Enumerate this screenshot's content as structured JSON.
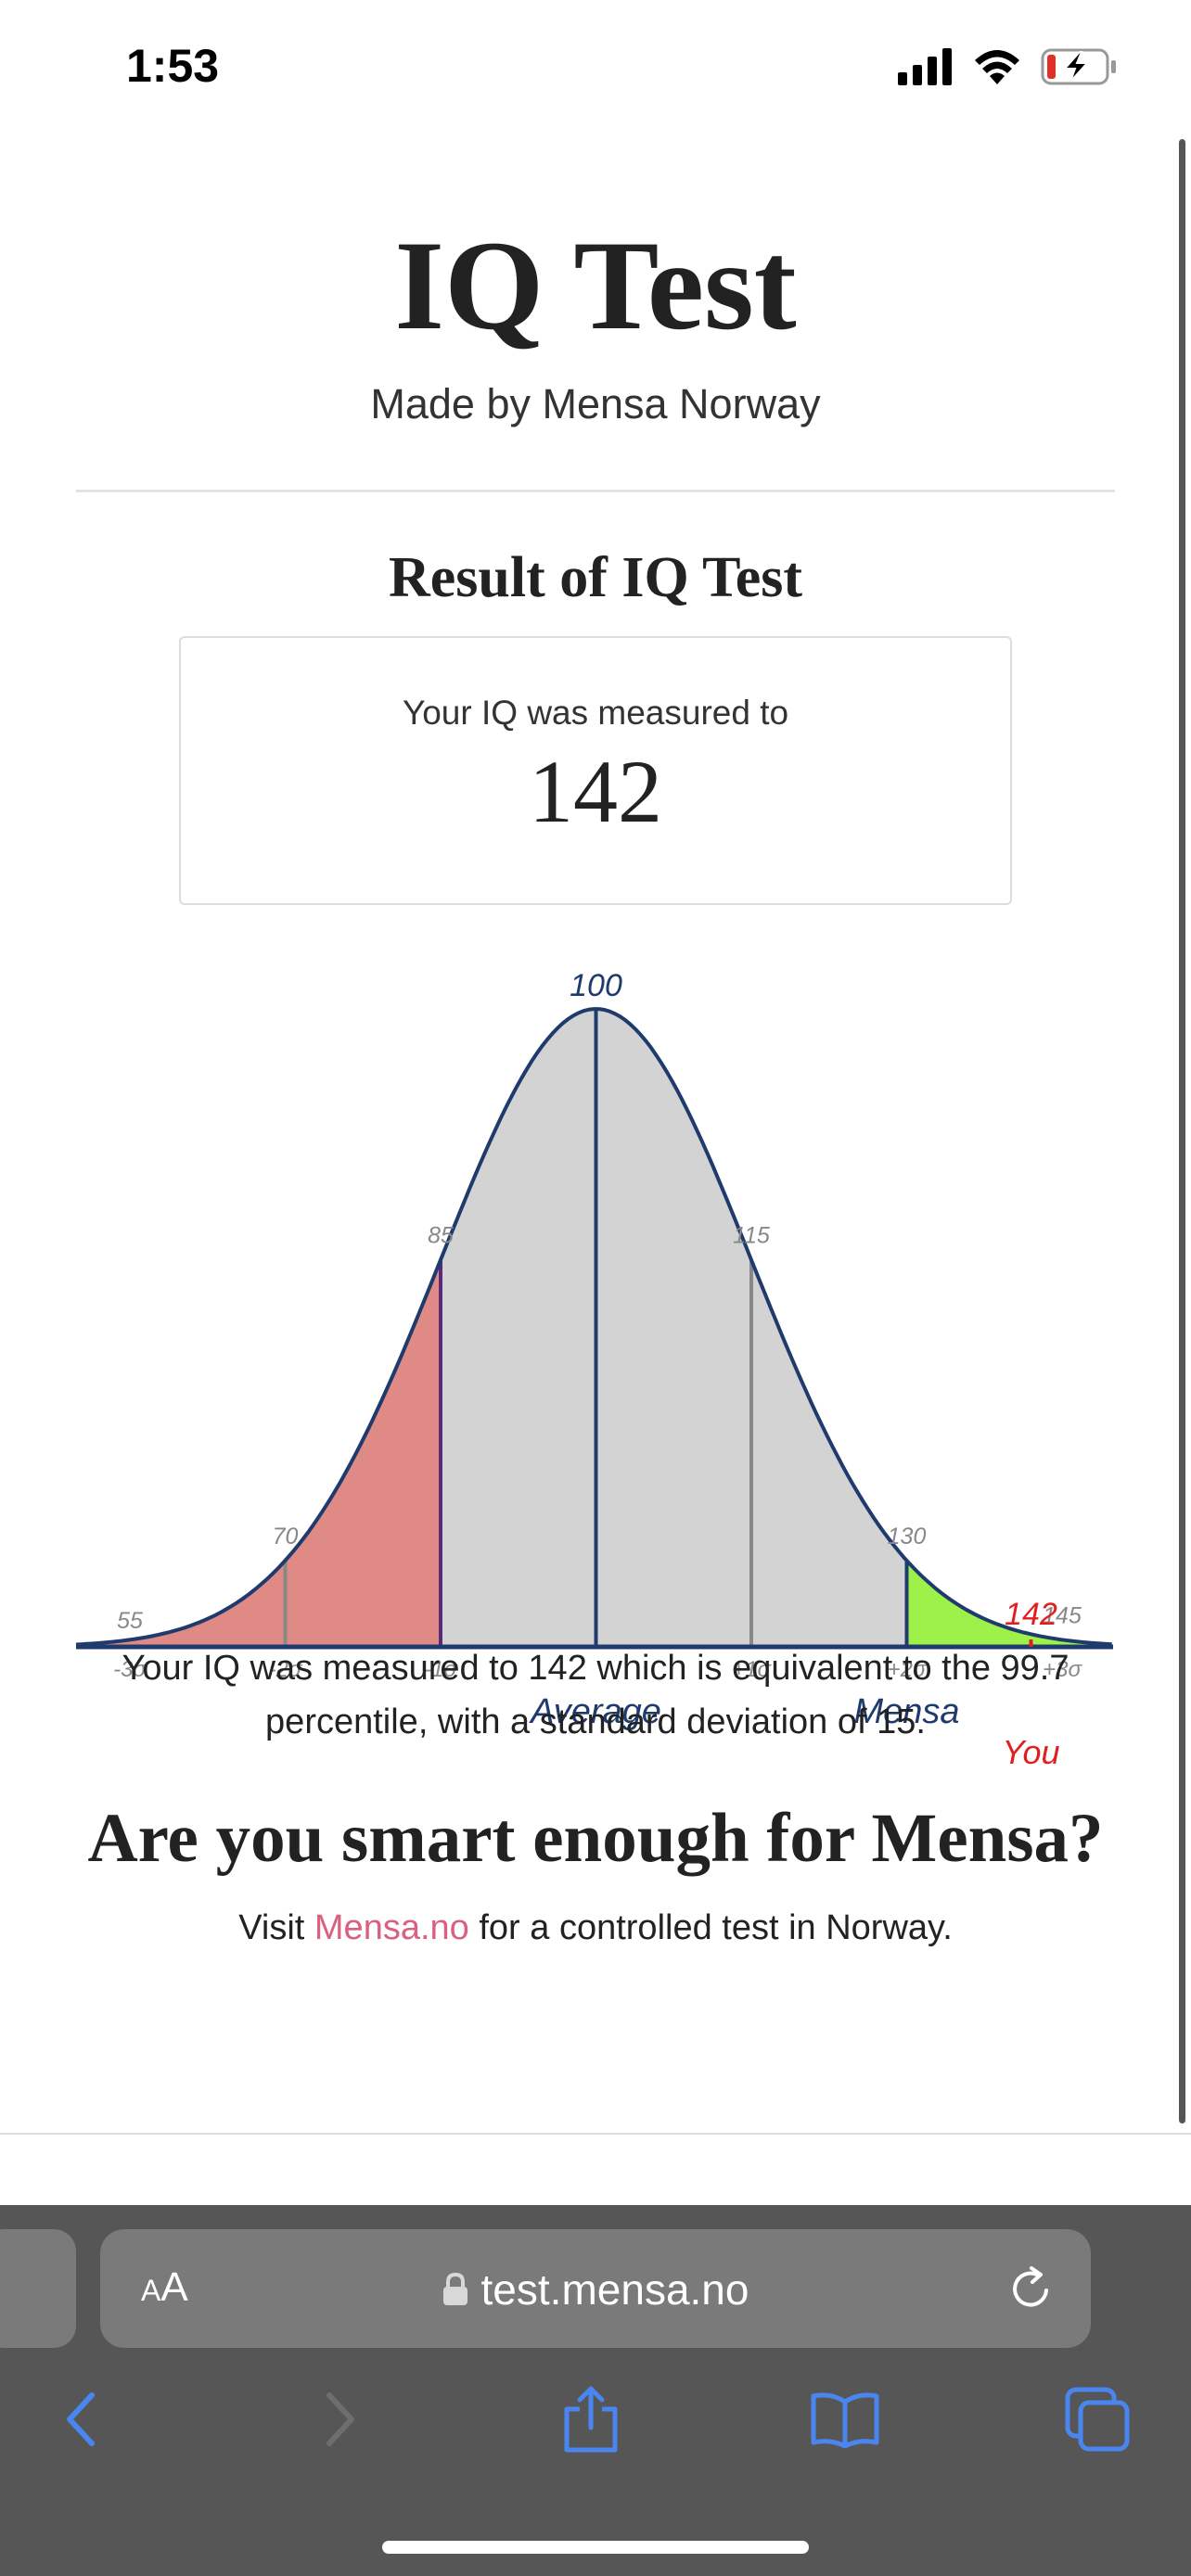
{
  "status_bar": {
    "time": "1:53"
  },
  "page": {
    "title": "IQ Test",
    "subtitle": "Made by Mensa Norway",
    "result_heading": "Result of IQ Test",
    "result_label": "Your IQ was measured to",
    "result_value": "142",
    "explanation": "Your IQ was measured to 142 which is equivalent to the 99.7 percentile, with a standard deviation of 15.",
    "mensa_heading": "Are you smart enough for Mensa?",
    "visit_prefix": "Visit",
    "visit_link": "Mensa.no",
    "visit_suffix": "for a controlled test in Norway."
  },
  "chart_data": {
    "type": "area",
    "mean": 100,
    "sd": 15,
    "score": 142,
    "x_range": [
      55,
      145
    ],
    "top_labels": [
      "55",
      "70",
      "85",
      "100",
      "115",
      "130",
      "145"
    ],
    "sigma_labels": [
      "-3σ",
      "-2σ",
      "-1σ",
      "+1σ",
      "+2σ",
      "+3σ"
    ],
    "region_labels": {
      "average": "Average",
      "mensa": "Mensa",
      "you": "You"
    },
    "score_label": "142",
    "colors": {
      "curve": "#1f3b6e",
      "fill": "#d3d3d3",
      "below": "#e08a85",
      "mensa": "#9ef04a",
      "you": "#e02020",
      "tick_text": "#888888",
      "line": "#888888"
    }
  },
  "browser": {
    "aa_small": "A",
    "aa_large": "A",
    "url": "test.mensa.no"
  },
  "icons": {
    "signal": "signal-icon",
    "wifi": "wifi-icon",
    "battery": "battery-charging-icon",
    "lock": "lock-icon",
    "reload": "reload-icon",
    "back": "back-arrow-icon",
    "forward": "forward-arrow-icon",
    "share": "share-icon",
    "bookmarks": "bookmarks-icon",
    "tabs": "tabs-icon"
  }
}
